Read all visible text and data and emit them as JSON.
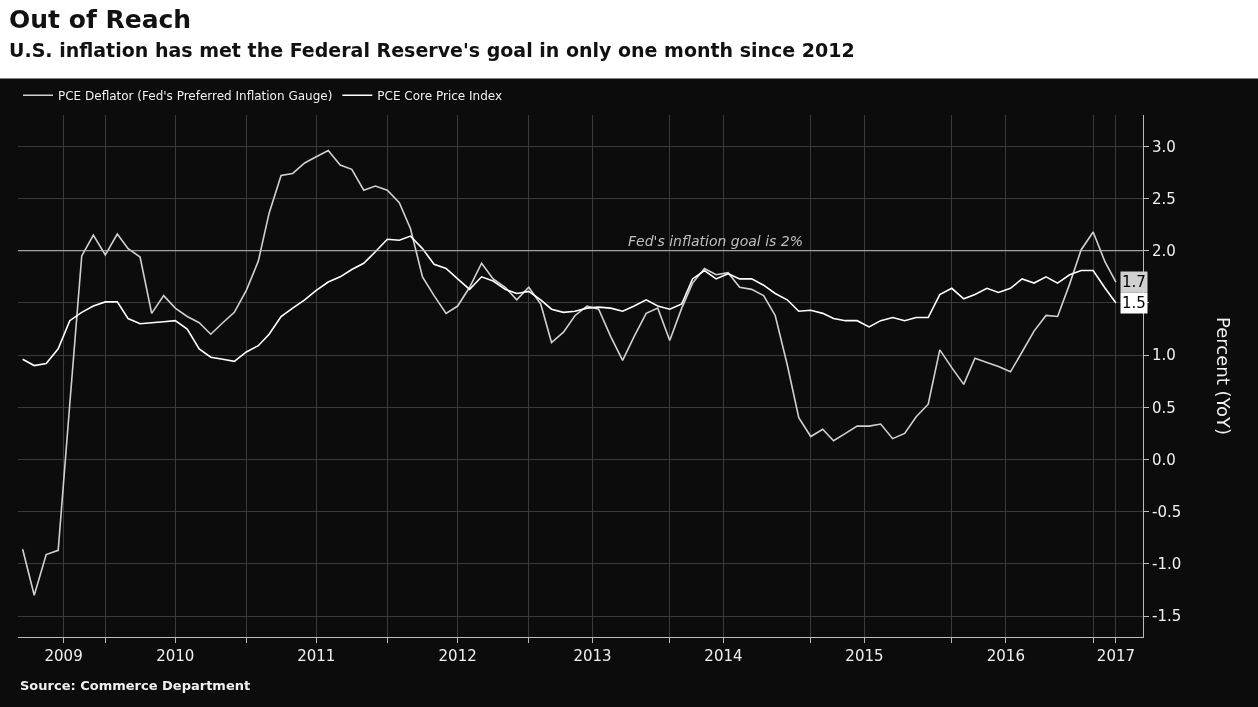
{
  "chart_data": {
    "type": "line",
    "title": "Out of Reach",
    "subtitle": "U.S. inflation has met the Federal Reserve's goal in only one month since 2012",
    "ylabel": "Percent (YoY)",
    "x": [
      "2009-06",
      "2009-07",
      "2009-08",
      "2009-09",
      "2009-10",
      "2009-11",
      "2009-12",
      "2010-01",
      "2010-02",
      "2010-03",
      "2010-04",
      "2010-05",
      "2010-06",
      "2010-07",
      "2010-08",
      "2010-09",
      "2010-10",
      "2010-11",
      "2010-12",
      "2011-01",
      "2011-02",
      "2011-03",
      "2011-04",
      "2011-05",
      "2011-06",
      "2011-07",
      "2011-08",
      "2011-09",
      "2011-10",
      "2011-11",
      "2011-12",
      "2012-01",
      "2012-02",
      "2012-03",
      "2012-04",
      "2012-05",
      "2012-06",
      "2012-07",
      "2012-08",
      "2012-09",
      "2012-10",
      "2012-11",
      "2012-12",
      "2013-01",
      "2013-02",
      "2013-03",
      "2013-04",
      "2013-05",
      "2013-06",
      "2013-07",
      "2013-08",
      "2013-09",
      "2013-10",
      "2013-11",
      "2013-12",
      "2014-01",
      "2014-02",
      "2014-03",
      "2014-04",
      "2014-05",
      "2014-06",
      "2014-07",
      "2014-08",
      "2014-09",
      "2014-10",
      "2014-11",
      "2014-12",
      "2015-01",
      "2015-02",
      "2015-03",
      "2015-04",
      "2015-05",
      "2015-06",
      "2015-07",
      "2015-08",
      "2015-09",
      "2015-10",
      "2015-11",
      "2015-12",
      "2016-01",
      "2016-02",
      "2016-03",
      "2016-04",
      "2016-05",
      "2016-06",
      "2016-07",
      "2016-08",
      "2016-09",
      "2016-10",
      "2016-11",
      "2016-12",
      "2017-01",
      "2017-02",
      "2017-03"
    ],
    "series": [
      {
        "name": "PCE Deflator (Fed's Preferred Inflation Gauge)",
        "color": "#d0d0d0",
        "values": [
          -0.86,
          -1.3,
          -0.91,
          -0.87,
          0.53,
          1.95,
          2.15,
          1.96,
          2.16,
          2.02,
          1.94,
          1.4,
          1.57,
          1.45,
          1.37,
          1.31,
          1.2,
          1.31,
          1.41,
          1.62,
          1.9,
          2.36,
          2.72,
          2.74,
          2.84,
          2.9,
          2.96,
          2.82,
          2.78,
          2.58,
          2.62,
          2.58,
          2.46,
          2.21,
          1.75,
          1.57,
          1.4,
          1.47,
          1.65,
          1.88,
          1.73,
          1.65,
          1.53,
          1.65,
          1.49,
          1.12,
          1.22,
          1.38,
          1.47,
          1.44,
          1.18,
          0.95,
          1.18,
          1.4,
          1.45,
          1.14,
          1.45,
          1.69,
          1.83,
          1.77,
          1.79,
          1.65,
          1.63,
          1.57,
          1.38,
          0.91,
          0.4,
          0.22,
          0.29,
          0.18,
          0.25,
          0.32,
          0.32,
          0.34,
          0.2,
          0.25,
          0.41,
          0.53,
          1.05,
          0.88,
          0.72,
          0.97,
          0.93,
          0.89,
          0.84,
          1.03,
          1.23,
          1.38,
          1.37,
          1.68,
          2.01,
          2.18,
          1.89,
          1.7
        ],
        "value_labels": [
          null,
          null,
          null,
          null,
          null,
          null,
          null,
          null,
          null,
          null,
          null,
          null,
          null,
          null,
          null,
          null,
          null,
          null,
          null,
          null,
          null,
          null,
          null,
          null,
          null,
          null,
          null,
          null,
          null,
          null,
          null,
          null,
          null,
          null,
          null,
          null,
          null,
          null,
          null,
          null,
          null,
          null,
          null,
          null,
          null,
          null,
          null,
          null,
          null,
          null,
          null,
          null,
          null,
          null,
          null,
          null,
          null,
          null,
          null,
          null,
          null,
          null,
          null,
          null,
          null,
          null,
          null,
          null,
          null,
          null,
          null,
          null,
          null,
          null,
          null,
          null,
          null,
          null,
          null,
          null,
          null,
          null,
          null,
          null,
          null,
          null,
          null,
          null,
          null,
          null,
          null,
          null,
          null,
          "1.7"
        ]
      },
      {
        "name": "PCE Core Price Index",
        "color": "#ffffff",
        "values": [
          0.96,
          0.9,
          0.92,
          1.06,
          1.33,
          1.41,
          1.47,
          1.51,
          1.51,
          1.35,
          1.3,
          1.31,
          1.32,
          1.33,
          1.25,
          1.06,
          0.98,
          0.96,
          0.94,
          1.03,
          1.09,
          1.2,
          1.37,
          1.45,
          1.53,
          1.62,
          1.7,
          1.75,
          1.82,
          1.88,
          1.99,
          2.11,
          2.1,
          2.14,
          2.02,
          1.87,
          1.83,
          1.73,
          1.63,
          1.75,
          1.71,
          1.63,
          1.59,
          1.61,
          1.53,
          1.44,
          1.41,
          1.42,
          1.45,
          1.46,
          1.45,
          1.42,
          1.47,
          1.53,
          1.47,
          1.44,
          1.49,
          1.73,
          1.81,
          1.73,
          1.78,
          1.73,
          1.73,
          1.67,
          1.59,
          1.53,
          1.42,
          1.43,
          1.4,
          1.35,
          1.33,
          1.33,
          1.27,
          1.33,
          1.36,
          1.33,
          1.36,
          1.36,
          1.58,
          1.64,
          1.54,
          1.58,
          1.64,
          1.6,
          1.64,
          1.73,
          1.69,
          1.75,
          1.69,
          1.77,
          1.81,
          1.81,
          1.64,
          1.5
        ],
        "value_labels": [
          null,
          null,
          null,
          null,
          null,
          null,
          null,
          null,
          null,
          null,
          null,
          null,
          null,
          null,
          null,
          null,
          null,
          null,
          null,
          null,
          null,
          null,
          null,
          null,
          null,
          null,
          null,
          null,
          null,
          null,
          null,
          null,
          null,
          null,
          null,
          null,
          null,
          null,
          null,
          null,
          null,
          null,
          null,
          null,
          null,
          null,
          null,
          null,
          null,
          null,
          null,
          null,
          null,
          null,
          null,
          null,
          null,
          null,
          null,
          null,
          null,
          null,
          null,
          null,
          null,
          null,
          null,
          null,
          null,
          null,
          null,
          null,
          null,
          null,
          null,
          null,
          null,
          null,
          null,
          null,
          null,
          null,
          null,
          null,
          null,
          null,
          null,
          null,
          null,
          null,
          null,
          null,
          null,
          "1.5"
        ]
      }
    ],
    "xlim": [
      "2009-05-20",
      "2017-05-10"
    ],
    "xticks": [
      {
        "value": "2009-09-15",
        "label": "2009"
      },
      {
        "value": "2010-01-01",
        "label": null
      },
      {
        "value": "2010-07-01",
        "label": "2010"
      },
      {
        "value": "2011-01-01",
        "label": null
      },
      {
        "value": "2011-07-01",
        "label": "2011"
      },
      {
        "value": "2012-01-01",
        "label": null
      },
      {
        "value": "2012-07-01",
        "label": "2012"
      },
      {
        "value": "2013-01-01",
        "label": null
      },
      {
        "value": "2013-06-15",
        "label": "2013"
      },
      {
        "value": "2014-01-01",
        "label": null
      },
      {
        "value": "2014-05-20",
        "label": "2014"
      },
      {
        "value": "2015-01-01",
        "label": null
      },
      {
        "value": "2015-05-20",
        "label": "2015"
      },
      {
        "value": "2016-01-01",
        "label": null
      },
      {
        "value": "2016-05-20",
        "label": "2016"
      },
      {
        "value": "2017-01-01",
        "label": null
      },
      {
        "value": "2017-03-01",
        "label": "2017"
      }
    ],
    "ylim": [
      -1.7,
      3.3
    ],
    "yticks": [
      {
        "value": -1.5,
        "label": "-1.5"
      },
      {
        "value": -1,
        "label": "-1.0"
      },
      {
        "value": -0.5,
        "label": "-0.5"
      },
      {
        "value": 0,
        "label": "0.0"
      },
      {
        "value": 0.5,
        "label": "0.5"
      },
      {
        "value": 1,
        "label": "1.0"
      },
      {
        "value": 1.5,
        "label": null
      },
      {
        "value": 2,
        "label": "2.0"
      },
      {
        "value": 2.5,
        "label": "2.5"
      },
      {
        "value": 3,
        "label": "3.0"
      }
    ],
    "ref_lines": [
      {
        "axis": "y",
        "value": 2,
        "label": "Fed's inflation goal is 2%",
        "color": "#bfbfbf"
      }
    ],
    "annotations": [
      "Source: Commerce Department"
    ],
    "grid": true,
    "legend": "top left",
    "marker": "none",
    "line_style": "solid"
  }
}
